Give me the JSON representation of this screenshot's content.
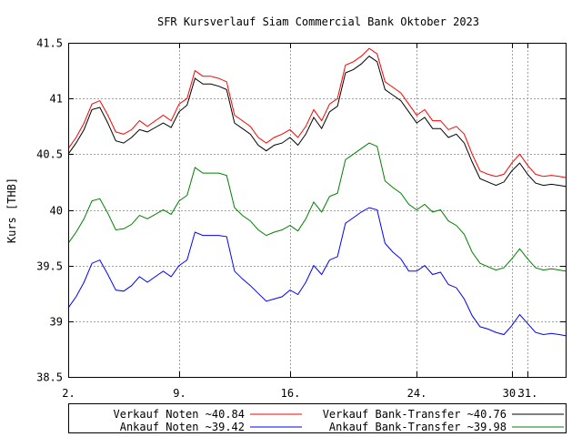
{
  "chart_data": {
    "type": "line",
    "title": "SFR Kursverlauf Siam Commercial Bank Oktober 2023",
    "xlabel": "",
    "ylabel": "Kurs [THB]",
    "ylim": [
      38.5,
      41.5
    ],
    "yticks": [
      "38.5",
      "39",
      "39.5",
      "40",
      "40.5",
      "41",
      "41.5"
    ],
    "xticks": [
      {
        "day": 2,
        "label": "2."
      },
      {
        "day": 9,
        "label": "9."
      },
      {
        "day": 16,
        "label": "16."
      },
      {
        "day": 24,
        "label": "24."
      },
      {
        "day": 30,
        "label": "30."
      },
      {
        "day": 31,
        "label": "31."
      }
    ],
    "xlim": [
      2,
      33.4
    ],
    "grid": true,
    "legend_position": "bottom",
    "series": [
      {
        "name": "Verkauf Noten",
        "legend": "Verkauf Noten ~40.84",
        "color": "#ff0000",
        "x": [
          2,
          2.5,
          3,
          3.5,
          4,
          4.5,
          5,
          5.5,
          6,
          6.5,
          7,
          7.5,
          8,
          8.5,
          9,
          9.5,
          10,
          10.5,
          11,
          11.5,
          12,
          12.5,
          13,
          13.5,
          14,
          14.5,
          15,
          15.5,
          16,
          16.5,
          17,
          17.5,
          18,
          18.5,
          19,
          19.5,
          20,
          20.5,
          21,
          21.5,
          22,
          22.5,
          23,
          23.5,
          24,
          24.5,
          25,
          25.5,
          26,
          26.5,
          27,
          27.5,
          28,
          28.5,
          29,
          29.5,
          30,
          30.5,
          31,
          31.5,
          32,
          32.5,
          33,
          33.4
        ],
        "values": [
          40.55,
          40.65,
          40.78,
          40.95,
          40.98,
          40.85,
          40.7,
          40.68,
          40.72,
          40.8,
          40.75,
          40.8,
          40.85,
          40.8,
          40.95,
          41.0,
          41.25,
          41.2,
          41.2,
          41.18,
          41.15,
          40.85,
          40.8,
          40.75,
          40.65,
          40.6,
          40.65,
          40.68,
          40.72,
          40.65,
          40.75,
          40.9,
          40.8,
          40.95,
          41.0,
          41.3,
          41.33,
          41.38,
          41.45,
          41.4,
          41.15,
          41.1,
          41.05,
          40.95,
          40.85,
          40.9,
          40.8,
          40.8,
          40.72,
          40.75,
          40.68,
          40.5,
          40.35,
          40.32,
          40.3,
          40.32,
          40.42,
          40.5,
          40.4,
          40.32,
          40.3,
          40.31,
          40.3,
          40.29
        ]
      },
      {
        "name": "Verkauf Bank-Transfer",
        "legend": "Verkauf Bank-Transfer ~40.76",
        "color": "#000000",
        "x": [
          2,
          2.5,
          3,
          3.5,
          4,
          4.5,
          5,
          5.5,
          6,
          6.5,
          7,
          7.5,
          8,
          8.5,
          9,
          9.5,
          10,
          10.5,
          11,
          11.5,
          12,
          12.5,
          13,
          13.5,
          14,
          14.5,
          15,
          15.5,
          16,
          16.5,
          17,
          17.5,
          18,
          18.5,
          19,
          19.5,
          20,
          20.5,
          21,
          21.5,
          22,
          22.5,
          23,
          23.5,
          24,
          24.5,
          25,
          25.5,
          26,
          26.5,
          27,
          27.5,
          28,
          28.5,
          29,
          29.5,
          30,
          30.5,
          31,
          31.5,
          32,
          32.5,
          33,
          33.4
        ],
        "values": [
          40.5,
          40.6,
          40.72,
          40.9,
          40.92,
          40.78,
          40.62,
          40.6,
          40.65,
          40.72,
          40.7,
          40.74,
          40.78,
          40.74,
          40.88,
          40.94,
          41.18,
          41.13,
          41.13,
          41.11,
          41.08,
          40.78,
          40.73,
          40.68,
          40.58,
          40.53,
          40.58,
          40.6,
          40.65,
          40.58,
          40.68,
          40.83,
          40.73,
          40.88,
          40.93,
          41.23,
          41.26,
          41.31,
          41.38,
          41.33,
          41.08,
          41.03,
          40.98,
          40.88,
          40.78,
          40.83,
          40.73,
          40.73,
          40.65,
          40.68,
          40.6,
          40.43,
          40.28,
          40.25,
          40.22,
          40.25,
          40.35,
          40.42,
          40.32,
          40.24,
          40.22,
          40.23,
          40.22,
          40.21
        ]
      },
      {
        "name": "Ankauf Noten",
        "legend": "Ankauf  Noten ~39.42",
        "color": "#0000ff",
        "x": [
          2,
          2.5,
          3,
          3.5,
          4,
          4.5,
          5,
          5.5,
          6,
          6.5,
          7,
          7.5,
          8,
          8.5,
          9,
          9.5,
          10,
          10.5,
          11,
          11.5,
          12,
          12.5,
          13,
          13.5,
          14,
          14.5,
          15,
          15.5,
          16,
          16.5,
          17,
          17.5,
          18,
          18.5,
          19,
          19.5,
          20,
          20.5,
          21,
          21.5,
          22,
          22.5,
          23,
          23.5,
          24,
          24.5,
          25,
          25.5,
          26,
          26.5,
          27,
          27.5,
          28,
          28.5,
          29,
          29.5,
          30,
          30.5,
          31,
          31.5,
          32,
          32.5,
          33,
          33.4
        ],
        "values": [
          39.12,
          39.22,
          39.35,
          39.52,
          39.55,
          39.42,
          39.28,
          39.27,
          39.32,
          39.4,
          39.35,
          39.4,
          39.45,
          39.4,
          39.5,
          39.55,
          39.8,
          39.77,
          39.77,
          39.77,
          39.76,
          39.45,
          39.38,
          39.32,
          39.25,
          39.18,
          39.2,
          39.22,
          39.28,
          39.24,
          39.35,
          39.5,
          39.42,
          39.55,
          39.58,
          39.88,
          39.93,
          39.98,
          40.02,
          40.0,
          39.7,
          39.62,
          39.56,
          39.45,
          39.45,
          39.5,
          39.42,
          39.44,
          39.33,
          39.3,
          39.2,
          39.05,
          38.95,
          38.93,
          38.9,
          38.88,
          38.96,
          39.06,
          38.98,
          38.9,
          38.88,
          38.89,
          38.88,
          38.87
        ]
      },
      {
        "name": "Ankauf Bank-Transfer",
        "legend": "Ankauf  Bank-Transfer ~39.98",
        "color": "#008000",
        "x": [
          2,
          2.5,
          3,
          3.5,
          4,
          4.5,
          5,
          5.5,
          6,
          6.5,
          7,
          7.5,
          8,
          8.5,
          9,
          9.5,
          10,
          10.5,
          11,
          11.5,
          12,
          12.5,
          13,
          13.5,
          14,
          14.5,
          15,
          15.5,
          16,
          16.5,
          17,
          17.5,
          18,
          18.5,
          19,
          19.5,
          20,
          20.5,
          21,
          21.5,
          22,
          22.5,
          23,
          23.5,
          24,
          24.5,
          25,
          25.5,
          26,
          26.5,
          27,
          27.5,
          28,
          28.5,
          29,
          29.5,
          30,
          30.5,
          31,
          31.5,
          32,
          32.5,
          33,
          33.4
        ],
        "values": [
          39.7,
          39.8,
          39.92,
          40.08,
          40.1,
          39.97,
          39.82,
          39.83,
          39.87,
          39.95,
          39.92,
          39.96,
          40.0,
          39.96,
          40.08,
          40.13,
          40.38,
          40.33,
          40.33,
          40.33,
          40.31,
          40.02,
          39.95,
          39.9,
          39.82,
          39.77,
          39.8,
          39.82,
          39.86,
          39.81,
          39.92,
          40.07,
          39.98,
          40.12,
          40.15,
          40.45,
          40.5,
          40.55,
          40.6,
          40.57,
          40.26,
          40.2,
          40.15,
          40.05,
          40.0,
          40.05,
          39.98,
          40.0,
          39.9,
          39.86,
          39.78,
          39.62,
          39.52,
          39.49,
          39.46,
          39.48,
          39.56,
          39.65,
          39.56,
          39.48,
          39.46,
          39.47,
          39.46,
          39.45
        ]
      }
    ]
  }
}
